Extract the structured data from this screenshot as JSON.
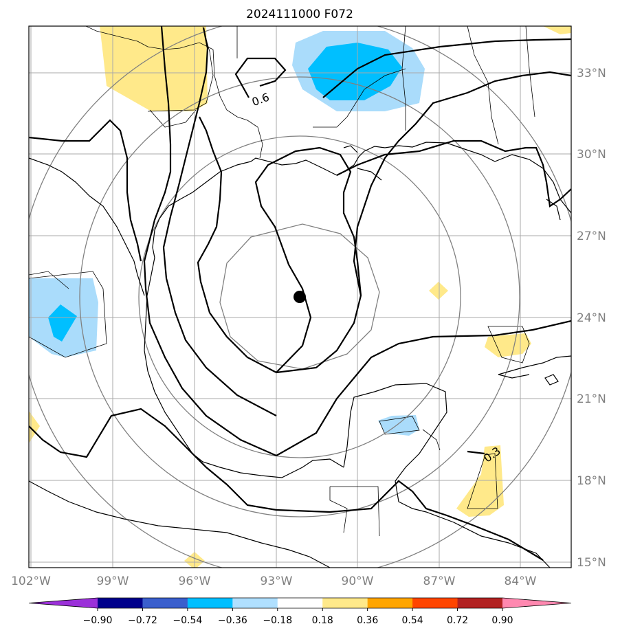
{
  "title": "2024111000 F072",
  "lat_labels": [
    "33°N",
    "30°N",
    "27°N",
    "24°N",
    "21°N",
    "18°N",
    "15°N"
  ],
  "lon_labels": [
    "102°W",
    "99°W",
    "96°W",
    "93°W",
    "90°W",
    "87°W",
    "84°W"
  ],
  "contour_labels": [
    "0.6",
    "0.3"
  ],
  "colorbar": {
    "tick_labels": [
      "−0.90",
      "−0.72",
      "−0.54",
      "−0.36",
      "−0.18",
      "0.18",
      "0.36",
      "0.54",
      "0.72",
      "0.90"
    ],
    "colors": [
      "#9b30d9",
      "#00008b",
      "#3a5fcd",
      "#00bfff",
      "#b0e0ff",
      "#ffffff",
      "#ffe98a",
      "#ffa500",
      "#ff4500",
      "#b22222",
      "#ff88b0"
    ]
  },
  "colors": {
    "light_blue": "#aadcfb",
    "blue": "#00bfff",
    "yellow": "#ffe98a",
    "grid": "#a9a9a9",
    "range_ring": "#808080"
  },
  "center_marker": "storm-center"
}
